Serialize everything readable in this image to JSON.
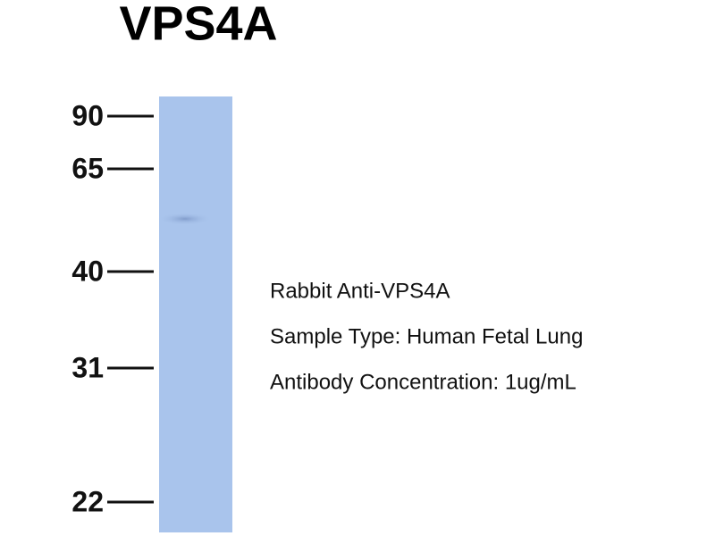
{
  "title": "VPS4A",
  "markers": [
    "90",
    "65",
    "40",
    "31",
    "22"
  ],
  "description": [
    "Rabbit Anti-VPS4A",
    "Sample Type: Human Fetal Lung",
    "Antibody Concentration: 1ug/mL"
  ]
}
